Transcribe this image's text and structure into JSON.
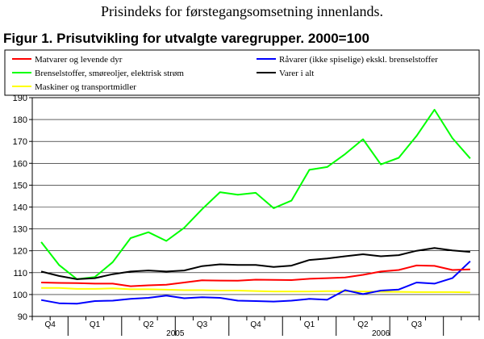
{
  "header": {
    "subtitle": "Prisindeks for førstegangsomsetning innenlands.",
    "figure_title": "Figur 1. Prisutvikling for utvalgte varegrupper. 2000=100"
  },
  "chart_data": {
    "type": "line",
    "ylim": [
      90,
      190
    ],
    "yticks": [
      90,
      100,
      110,
      120,
      130,
      140,
      150,
      160,
      170,
      180,
      190
    ],
    "grid": true,
    "legend_position": "top",
    "quarter_labels": [
      "Q4",
      "Q1",
      "Q2",
      "Q3",
      "Q4",
      "Q1",
      "Q2",
      "Q3"
    ],
    "year_labels": [
      "2005",
      "2006"
    ],
    "x": [
      "2004-10",
      "2004-11",
      "2004-12",
      "2005-01",
      "2005-02",
      "2005-03",
      "2005-04",
      "2005-05",
      "2005-06",
      "2005-07",
      "2005-08",
      "2005-09",
      "2005-10",
      "2005-11",
      "2005-12",
      "2006-01",
      "2006-02",
      "2006-03",
      "2006-04",
      "2006-05",
      "2006-06",
      "2006-07",
      "2006-08",
      "2006-09",
      "2006-10"
    ],
    "series": [
      {
        "name": "Matvarer og levende dyr",
        "color": "#ff0000",
        "values": [
          105.5,
          105.3,
          105.2,
          105.0,
          105.0,
          103.8,
          104.2,
          104.5,
          105.5,
          106.5,
          106.4,
          106.3,
          106.8,
          106.7,
          106.6,
          107.2,
          107.5,
          107.8,
          109.0,
          110.5,
          111.2,
          113.3,
          113.1,
          111.2,
          111.5
        ]
      },
      {
        "name": "Brenselstoffer, smøreoljer, elektrisk strøm",
        "color": "#00ff00",
        "values": [
          124.0,
          113.5,
          107.0,
          108.0,
          114.8,
          125.8,
          128.5,
          124.5,
          130.5,
          139.0,
          146.8,
          145.6,
          146.5,
          139.5,
          142.9,
          157.0,
          158.3,
          164.2,
          171.0,
          159.5,
          162.5,
          172.5,
          184.5,
          171.5,
          162.2
        ]
      },
      {
        "name": "Maskiner og transportmidler",
        "color": "#ffff00",
        "values": [
          103.0,
          103.0,
          102.6,
          102.6,
          102.8,
          102.4,
          102.4,
          102.2,
          102.0,
          102.0,
          101.8,
          101.8,
          101.6,
          101.4,
          101.4,
          101.4,
          101.5,
          101.5,
          101.4,
          101.3,
          101.2,
          101.1,
          101.1,
          101.1,
          101.0
        ]
      },
      {
        "name": "Råvarer (ikke spiselige) ekskl. brenselstoffer",
        "color": "#0000ff",
        "values": [
          97.5,
          96.0,
          95.8,
          97.0,
          97.2,
          98.0,
          98.5,
          99.5,
          98.3,
          98.8,
          98.5,
          97.2,
          97.0,
          96.8,
          97.2,
          98.0,
          97.6,
          102.0,
          100.2,
          101.8,
          102.3,
          105.5,
          105.0,
          107.5,
          115.2
        ]
      },
      {
        "name": "Varer i alt",
        "color": "#000000",
        "values": [
          110.5,
          108.5,
          107.0,
          107.5,
          109.3,
          110.5,
          111.0,
          110.5,
          111.0,
          113.0,
          113.8,
          113.5,
          113.5,
          112.6,
          113.2,
          115.8,
          116.5,
          117.5,
          118.4,
          117.5,
          118.0,
          120.0,
          121.3,
          120.2,
          119.5
        ]
      }
    ]
  }
}
